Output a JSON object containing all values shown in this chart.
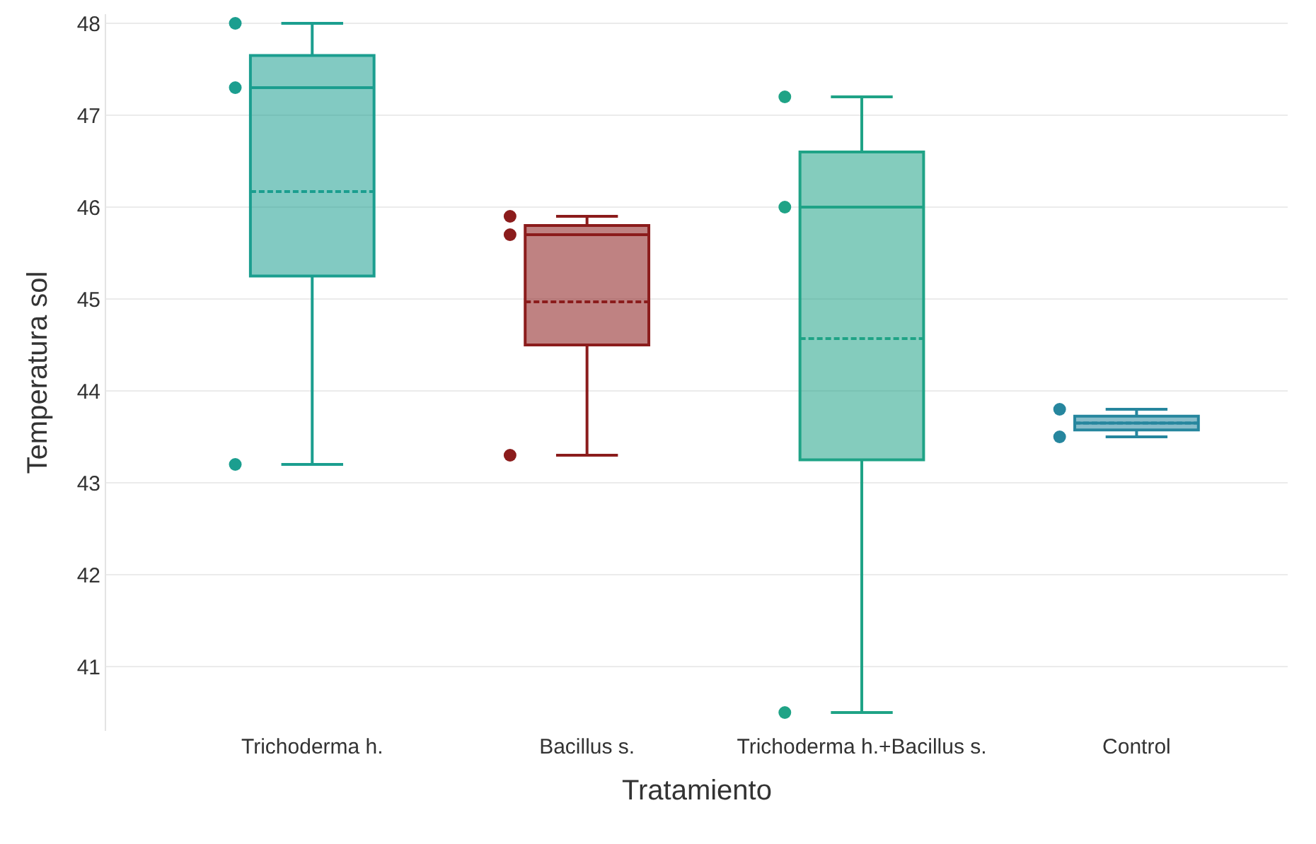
{
  "chart_data": {
    "type": "box",
    "xlabel": "Tratamiento",
    "ylabel": "Temperatura sol",
    "categories": [
      "Trichoderma h.",
      "Bacillus s.",
      "Trichoderma h.+Bacillus s.",
      "Control"
    ],
    "colors": [
      "#1b9e8f",
      "#8b1c1c",
      "#1fa386",
      "#26869e"
    ],
    "boxes": [
      {
        "low": 43.2,
        "q1": 45.25,
        "median": 47.3,
        "q3": 47.65,
        "high": 48.0,
        "mean": 46.17
      },
      {
        "low": 43.3,
        "q1": 44.5,
        "median": 45.7,
        "q3": 45.8,
        "high": 45.9,
        "mean": 44.97
      },
      {
        "low": 40.5,
        "q1": 43.25,
        "median": 46.0,
        "q3": 46.6,
        "high": 47.2,
        "mean": 44.57
      },
      {
        "low": 43.5,
        "q1": 43.575,
        "median": 43.65,
        "q3": 43.725,
        "high": 43.8,
        "mean": 43.65
      }
    ],
    "series": [
      {
        "type": "scatter",
        "color": "#1b9e8f",
        "x": [
          "Trichoderma h.",
          "Trichoderma h.",
          "Trichoderma h."
        ],
        "values": [
          47.3,
          48.0,
          43.2
        ]
      },
      {
        "type": "scatter",
        "color": "#8b1c1c",
        "x": [
          "Bacillus s.",
          "Bacillus s.",
          "Bacillus s."
        ],
        "values": [
          45.7,
          45.9,
          43.3
        ]
      },
      {
        "type": "scatter",
        "color": "#1fa386",
        "x": [
          "Trichoderma h.+Bacillus s.",
          "Trichoderma h.+Bacillus s.",
          "Trichoderma h.+Bacillus s."
        ],
        "values": [
          46.0,
          47.2,
          40.5
        ]
      },
      {
        "type": "scatter",
        "color": "#26869e",
        "x": [
          "Control",
          "Control"
        ],
        "values": [
          43.8,
          43.5
        ]
      }
    ],
    "ylim": [
      40.3,
      48.1
    ],
    "yticks": [
      41,
      42,
      43,
      44,
      45,
      46,
      47,
      48
    ],
    "grid": "y",
    "marker": "circle"
  }
}
